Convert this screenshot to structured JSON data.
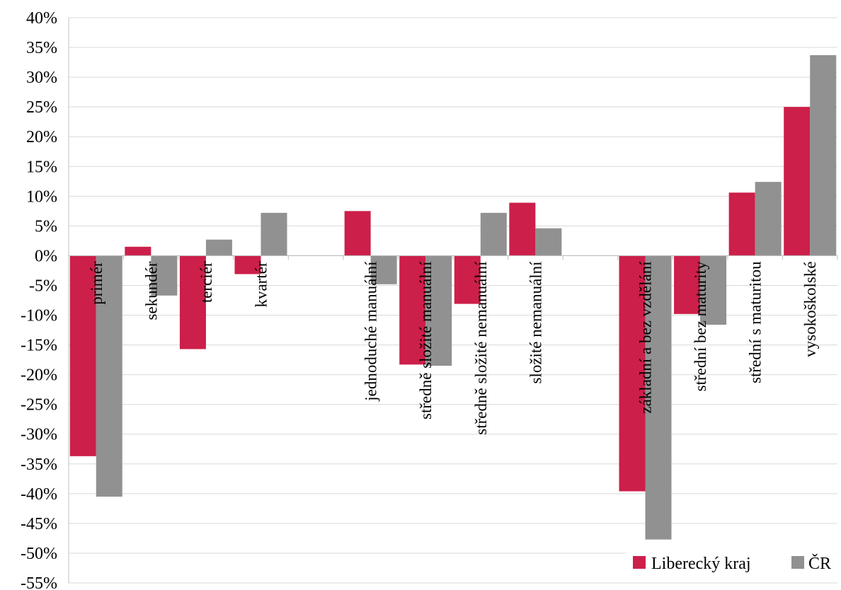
{
  "chart_data": {
    "type": "bar",
    "categories": [
      "primér",
      "sekundér",
      "terciér",
      "kvartér",
      "",
      "jednoduché manuální",
      "středně složité manuální",
      "středně složité nemanuální",
      "složité nemanuální",
      "",
      "základní a bez vzdělání",
      "střední bez maturity",
      "střední s maturitou",
      "vysokoškolské"
    ],
    "series": [
      {
        "name": "Liberecký kraj",
        "color": "#cc1f4a",
        "values": [
          -33.7,
          1.5,
          -15.7,
          -3.1,
          null,
          7.5,
          -18.3,
          -8.1,
          8.9,
          null,
          -39.6,
          -9.8,
          10.6,
          25.0
        ]
      },
      {
        "name": "ČR",
        "color": "#919191",
        "values": [
          -40.5,
          -6.7,
          2.7,
          7.2,
          null,
          -4.8,
          -18.5,
          7.2,
          4.6,
          null,
          -47.7,
          -11.6,
          12.4,
          33.7
        ]
      }
    ],
    "ylim": [
      -55,
      40
    ],
    "ytick_step": 5,
    "ytick_labels": [
      "40%",
      "35%",
      "30%",
      "25%",
      "20%",
      "15%",
      "10%",
      "5%",
      "0%",
      "-5%",
      "-10%",
      "-15%",
      "-20%",
      "-25%",
      "-30%",
      "-35%",
      "-40%",
      "-45%",
      "-50%",
      "-55%"
    ],
    "grid": true,
    "legend_position": "bottom-right",
    "title": "",
    "xlabel": "",
    "ylabel": ""
  }
}
